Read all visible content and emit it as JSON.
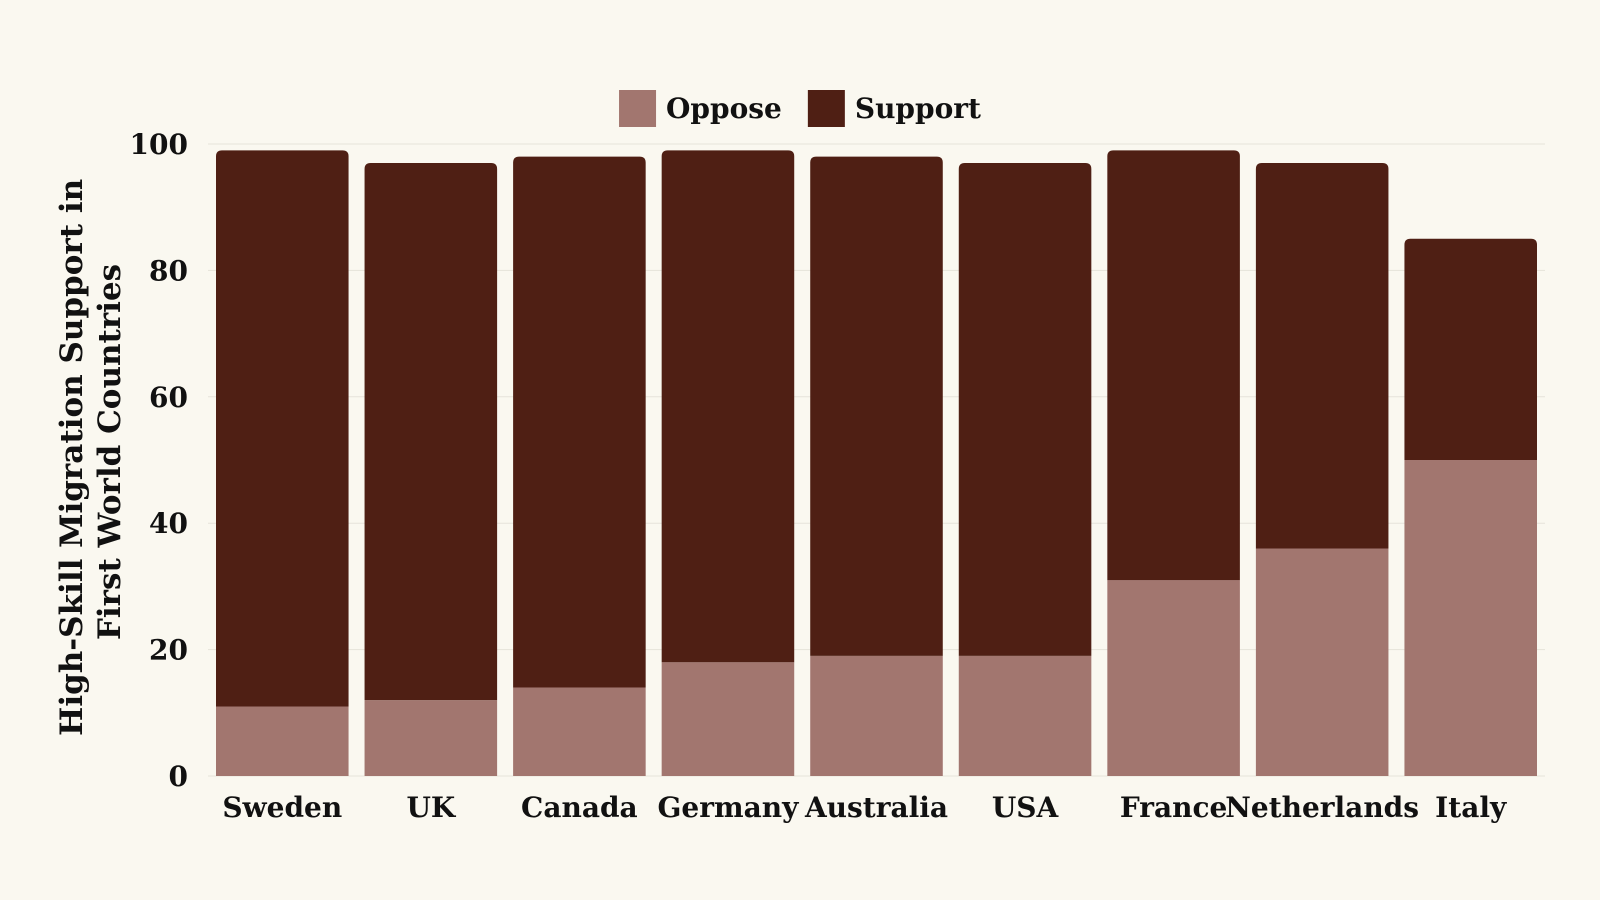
{
  "chart_data": {
    "type": "bar",
    "stacked": true,
    "categories": [
      "Sweden",
      "UK",
      "Canada",
      "Germany",
      "Australia",
      "USA",
      "France",
      "Netherlands",
      "Italy"
    ],
    "series": [
      {
        "name": "Oppose",
        "color": "#a2766f",
        "values": [
          11,
          12,
          14,
          18,
          19,
          19,
          31,
          36,
          50
        ]
      },
      {
        "name": "Support",
        "color": "#4f1f14",
        "values": [
          88,
          85,
          84,
          81,
          79,
          78,
          68,
          61,
          35
        ]
      }
    ],
    "title": "",
    "xlabel": "",
    "ylabel_lines": [
      "High-Skill Migration Support in",
      "First World Countries"
    ],
    "ylim": [
      0,
      100
    ],
    "yticks": [
      0,
      20,
      40,
      60,
      80,
      100
    ],
    "grid": true,
    "legend_position": "top"
  },
  "colors": {
    "background": "#faf8f0",
    "grid": "#e6e3da",
    "text": "#111111"
  }
}
